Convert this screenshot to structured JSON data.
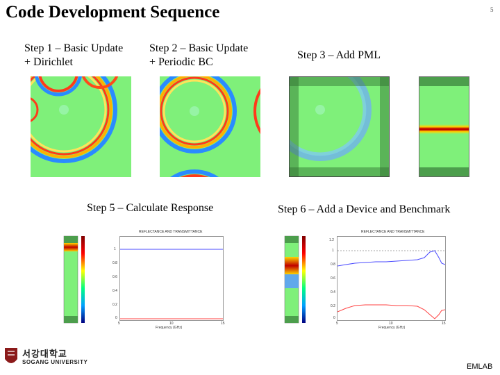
{
  "slide": {
    "title": "Code Development Sequence",
    "page_number": "5"
  },
  "steps": [
    {
      "label": "Step 1 – Basic Update\n+ Dirichlet"
    },
    {
      "label": "Step 2 – Basic Update\n+ Periodic BC"
    },
    {
      "label": "Step 3 – Add PML"
    },
    {
      "label": "Step 5 – Calculate Response"
    },
    {
      "label": "Step 6 – Add a Device and Benchmark"
    }
  ],
  "plots": {
    "step5": {
      "title": "REFLECTANCE AND TRANSMITTANCE",
      "xlabel": "Frequency (GHz)",
      "x_ticks": [
        "5",
        "10",
        "15"
      ],
      "y_ticks": [
        "1",
        "0.8",
        "0.6",
        "0.4",
        "0.2",
        "0"
      ]
    },
    "step6": {
      "title": "REFLECTANCE AND TRANSMITTANCE",
      "xlabel": "Frequency (GHz)",
      "x_ticks": [
        "5",
        "10",
        "15"
      ],
      "y_ticks": [
        "1.2",
        "1",
        "0.8",
        "0.6",
        "0.4",
        "0.2",
        "0"
      ]
    }
  },
  "footer": {
    "university_korean": "서강대학교",
    "university_english": "SOGANG UNIVERSITY",
    "lab_name": "EMLAB"
  }
}
